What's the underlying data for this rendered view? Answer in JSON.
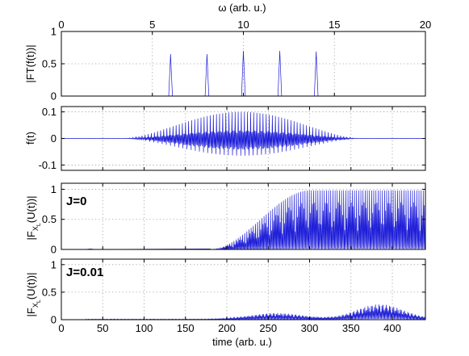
{
  "chart_data": [
    {
      "type": "line",
      "id": "ft-spectrum",
      "xlabel": "ω (arb. u.)",
      "ylabel": "|FT(f(t))|",
      "xlim": [
        0,
        20
      ],
      "ylim": [
        0,
        1
      ],
      "xticks": [
        0,
        5,
        10,
        15,
        20
      ],
      "yticks": [
        0,
        0.5,
        1
      ],
      "xaxis_position": "top",
      "grid": true,
      "series": [
        {
          "values": [
            [
              0,
              0
            ],
            [
              5.9,
              0
            ],
            [
              6,
              0.65
            ],
            [
              6.1,
              0
            ],
            [
              7.9,
              0
            ],
            [
              8,
              0.65
            ],
            [
              8.1,
              0
            ],
            [
              9.9,
              0
            ],
            [
              10,
              0.7
            ],
            [
              10.1,
              0
            ],
            [
              11.9,
              0
            ],
            [
              12,
              0.7
            ],
            [
              12.1,
              0
            ],
            [
              13.9,
              0
            ],
            [
              14,
              0.69
            ],
            [
              14.1,
              0
            ],
            [
              20,
              0
            ]
          ]
        }
      ]
    },
    {
      "type": "line",
      "id": "signal",
      "ylabel": "f(t)",
      "xlim": [
        0,
        440
      ],
      "ylim": [
        -0.12,
        0.12
      ],
      "yticks": [
        -0.1,
        0,
        0.1
      ],
      "grid": true,
      "series": [
        {
          "envelope": {
            "start": 75,
            "peak": 220,
            "end": 360,
            "upper": 0.1,
            "lower": -0.065,
            "inner_upper": 0.02,
            "inner_lower": -0.03
          }
        }
      ]
    },
    {
      "type": "line",
      "id": "response-j0",
      "ylabel": "|F_{X_L}(U(t))|",
      "annotation": "J=0",
      "xlim": [
        0,
        440
      ],
      "ylim": [
        0,
        1.1
      ],
      "yticks": [
        0,
        0.5,
        1
      ],
      "grid": true,
      "series": [
        {
          "envelope": {
            "start": 180,
            "rise_end": 300,
            "end": 440,
            "upper": 0.98,
            "baseline_band": 0.15
          }
        }
      ]
    },
    {
      "type": "line",
      "id": "response-j001",
      "ylabel": "|F_{X_L}(U(t))|",
      "annotation": "J=0.01",
      "xlabel": "time (arb. u.)",
      "xlim": [
        0,
        440
      ],
      "ylim": [
        0,
        1.1
      ],
      "xticks": [
        0,
        50,
        100,
        150,
        200,
        250,
        300,
        350,
        400
      ],
      "yticks": [
        0,
        0.5,
        1
      ],
      "grid": true,
      "series": [
        {
          "envelope": {
            "start": 30,
            "bump_peak_t": 260,
            "bump_peak": 0.11,
            "big_peak_t": 385,
            "big_peak": 0.27,
            "end": 440
          }
        }
      ]
    }
  ]
}
